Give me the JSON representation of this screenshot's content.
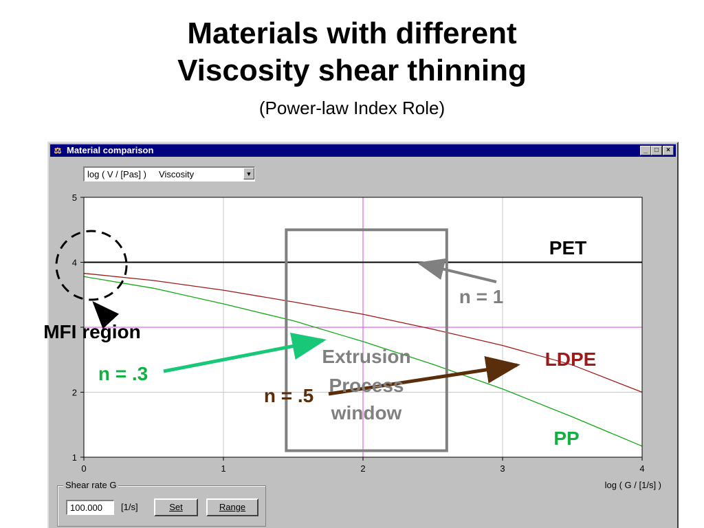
{
  "slide": {
    "title_line1": "Materials with different",
    "title_line2": "Viscosity shear thinning",
    "subtitle": "(Power-law Index Role)"
  },
  "window": {
    "title": "Material comparison",
    "title_icon": "material-comparison-icon",
    "controls": {
      "minimize": "_",
      "maximize": "□",
      "close": "×"
    }
  },
  "selector": {
    "value": "log ( V / [Pas] )     Viscosity",
    "button_icon": "▼"
  },
  "shear_rate": {
    "group_label": "Shear rate G",
    "value": "100.000",
    "unit": "[1/s]",
    "set_label": "Set",
    "range_label": "Range"
  },
  "annotations": {
    "pet": "PET",
    "ldpe": "LDPE",
    "pp": "PP",
    "n1": "n = 1",
    "n3": "n = .3",
    "n5": "n = .5",
    "mfi": "MFI region",
    "window_line1": "Extrusion",
    "window_line2": "Process",
    "window_line3": "window"
  },
  "colors": {
    "pet": "#000000",
    "ldpe": "#a01818",
    "pp": "#12a812",
    "n1_arrow": "#808080",
    "n3_arrow": "#18c878",
    "n5_arrow": "#5a2e0a",
    "ldpe_label": "#a01818",
    "pp_label": "#12b040",
    "n3_label": "#12b040",
    "n5_label": "#5a2e0a",
    "window_box": "#808080",
    "crosshair": "#e040e0"
  },
  "chart_data": {
    "type": "line",
    "xlabel": "log ( G / [1/s] )",
    "ylabel": "",
    "xlim": [
      0,
      4
    ],
    "ylim": [
      1,
      5
    ],
    "xticks": [
      0,
      1,
      2,
      3,
      4
    ],
    "yticks": [
      1,
      2,
      3,
      4,
      5
    ],
    "xtick_labels": [
      "0",
      "1",
      "2",
      "3",
      "4"
    ],
    "ytick_labels": [
      "1",
      "2",
      "",
      "4",
      "5"
    ],
    "grid": true,
    "crosshair": {
      "x": 2,
      "y": 3
    },
    "series": [
      {
        "key": "pet",
        "x": [
          0,
          1,
          2,
          3,
          4
        ],
        "y": [
          4.0,
          4.0,
          4.0,
          4.0,
          4.0
        ]
      },
      {
        "key": "ldpe",
        "x": [
          0,
          0.5,
          1,
          1.5,
          2,
          2.5,
          3,
          3.5,
          4
        ],
        "y": [
          3.83,
          3.72,
          3.57,
          3.39,
          3.2,
          2.97,
          2.72,
          2.42,
          2.0
        ]
      },
      {
        "key": "pp",
        "x": [
          0,
          0.5,
          1,
          1.5,
          2,
          2.5,
          3,
          3.5,
          4
        ],
        "y": [
          3.78,
          3.6,
          3.36,
          3.1,
          2.78,
          2.43,
          2.05,
          1.62,
          1.17
        ]
      }
    ],
    "window_box": {
      "x": [
        1.45,
        2.6
      ],
      "y": [
        1.1,
        4.5
      ]
    }
  }
}
